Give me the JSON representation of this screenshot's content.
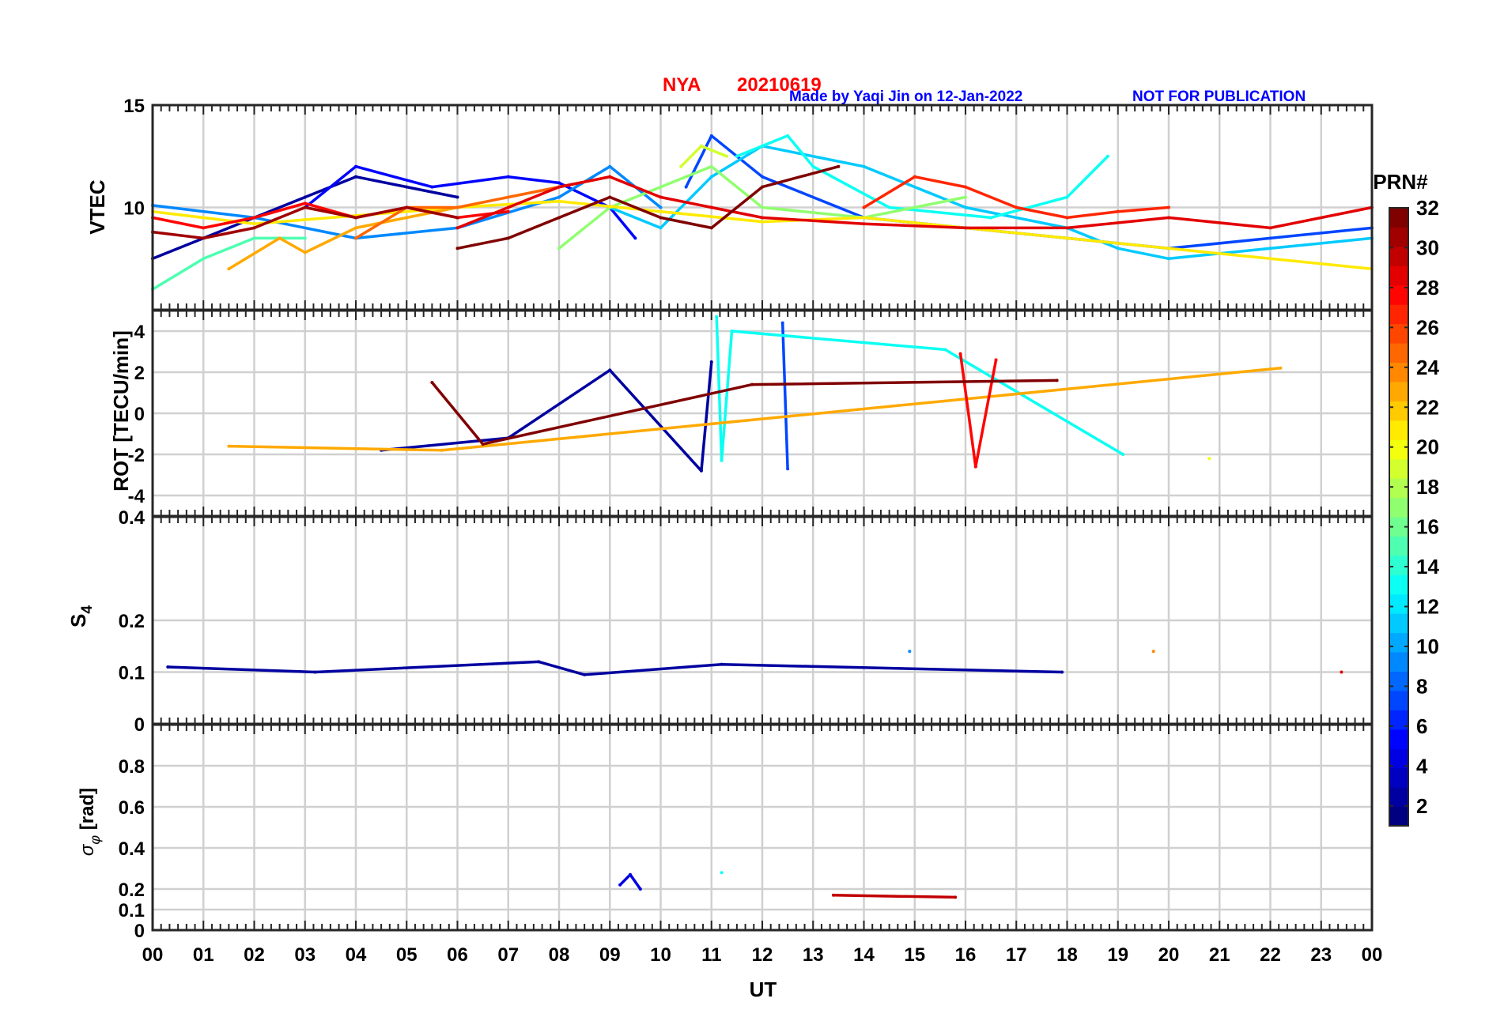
{
  "header": {
    "station": "NYA",
    "date": "20210619",
    "credit": "Made by Yaqi Jin on 12-Jan-2022",
    "notice": "NOT FOR PUBLICATION",
    "title_color": "#ff0000",
    "credit_color": "#0000ff"
  },
  "colorbar": {
    "label": "PRN#",
    "range": [
      1,
      32
    ],
    "ticks": [
      "2",
      "4",
      "6",
      "8",
      "10",
      "12",
      "14",
      "16",
      "18",
      "20",
      "22",
      "24",
      "26",
      "28",
      "30",
      "32"
    ],
    "colormap": "jet"
  },
  "chart_data": [
    {
      "type": "line",
      "ylabel": "VTEC",
      "xlim": [
        0,
        24
      ],
      "ylim": [
        5,
        15
      ],
      "yticks": [
        "10",
        "15"
      ],
      "grid": true,
      "series": [
        {
          "prn": 2,
          "x": [
            0.0,
            1.0,
            2.0,
            3.0,
            4.0,
            5.0,
            6.0
          ],
          "values": [
            7.5,
            8.5,
            9.5,
            10.5,
            11.5,
            11.0,
            10.5
          ]
        },
        {
          "prn": 5,
          "x": [
            3.0,
            4.0,
            5.5,
            7.0,
            8.0,
            9.0,
            9.5
          ],
          "values": [
            10.0,
            12.0,
            11.0,
            11.5,
            11.2,
            10.0,
            8.5
          ]
        },
        {
          "prn": 7,
          "x": [
            10.5,
            11.0,
            12.0,
            14.0,
            16.0,
            18.0,
            20.0,
            22.0,
            24.0
          ],
          "values": [
            11.0,
            13.5,
            11.5,
            9.5,
            9.0,
            8.5,
            8.0,
            8.5,
            9.0
          ]
        },
        {
          "prn": 9,
          "x": [
            0.0,
            2.0,
            4.0,
            6.0,
            8.0,
            9.0,
            10.0
          ],
          "values": [
            10.1,
            9.5,
            8.5,
            9.0,
            10.5,
            12.0,
            10.0
          ]
        },
        {
          "prn": 11,
          "x": [
            9.0,
            10.0,
            11.0,
            12.0,
            14.0,
            16.0,
            18.0,
            19.0,
            20.0,
            22.0,
            24.0
          ],
          "values": [
            10.0,
            9.0,
            11.5,
            13.0,
            12.0,
            10.0,
            9.0,
            8.0,
            7.5,
            8.0,
            8.5
          ]
        },
        {
          "prn": 13,
          "x": [
            11.5,
            12.5,
            13.0,
            14.5,
            16.5,
            18.0,
            18.8
          ],
          "values": [
            12.5,
            13.5,
            12.0,
            10.0,
            9.5,
            10.5,
            12.5
          ]
        },
        {
          "prn": 15,
          "x": [
            0.0,
            1.0,
            2.0,
            3.0
          ],
          "values": [
            6.0,
            7.5,
            8.5,
            8.5
          ]
        },
        {
          "prn": 17,
          "x": [
            8.0,
            9.0,
            10.0,
            11.0,
            12.0,
            14.0,
            16.0
          ],
          "values": [
            8.0,
            10.0,
            11.0,
            12.0,
            10.0,
            9.5,
            10.5
          ]
        },
        {
          "prn": 19,
          "x": [
            10.4,
            10.8,
            11.3
          ],
          "values": [
            12.0,
            13.0,
            12.5
          ]
        },
        {
          "prn": 21,
          "x": [
            0.0,
            2.0,
            4.0,
            6.0,
            8.0,
            10.0,
            12.0,
            14.0,
            16.0,
            18.0,
            20.0,
            22.0,
            24.0
          ],
          "values": [
            9.8,
            9.2,
            9.6,
            10.0,
            10.3,
            9.8,
            9.3,
            9.5,
            9.0,
            8.5,
            8.0,
            7.5,
            7.0
          ]
        },
        {
          "prn": 23,
          "x": [
            1.5,
            2.5,
            3.0,
            4.0,
            5.0,
            6.0
          ],
          "values": [
            7.0,
            8.5,
            7.8,
            9.0,
            9.5,
            10.0
          ]
        },
        {
          "prn": 25,
          "x": [
            4.0,
            5.0,
            6.0,
            7.0,
            8.0,
            9.0
          ],
          "values": [
            8.5,
            10.0,
            10.0,
            10.5,
            11.0,
            11.5
          ]
        },
        {
          "prn": 27,
          "x": [
            14.0,
            15.0,
            16.0,
            17.0,
            18.0,
            19.0,
            20.0
          ],
          "values": [
            10.0,
            11.5,
            11.0,
            10.0,
            9.5,
            9.8,
            10.0
          ]
        },
        {
          "prn": 28,
          "x": [
            0.0,
            1.0,
            2.0,
            3.0,
            4.0,
            5.0,
            6.0,
            7.0
          ],
          "values": [
            9.5,
            9.0,
            9.5,
            10.2,
            9.5,
            10.0,
            9.5,
            9.8
          ]
        },
        {
          "prn": 29,
          "x": [
            6.0,
            7.0,
            8.0,
            9.0,
            10.0,
            11.0,
            12.0,
            14.0,
            16.0,
            18.0,
            20.0,
            22.0,
            24.0
          ],
          "values": [
            9.0,
            10.0,
            11.0,
            11.5,
            10.5,
            10.0,
            9.5,
            9.2,
            9.0,
            9.0,
            9.5,
            9.0,
            10.0
          ]
        },
        {
          "prn": 31,
          "x": [
            0.0,
            1.0,
            2.0,
            3.0,
            4.0,
            5.0,
            6.0
          ],
          "values": [
            8.8,
            8.5,
            9.0,
            10.0,
            9.5,
            10.0,
            9.5
          ]
        },
        {
          "prn": 32,
          "x": [
            6.0,
            7.0,
            8.0,
            9.0,
            10.0,
            11.0,
            12.0,
            13.5
          ],
          "values": [
            8.0,
            8.5,
            9.5,
            10.5,
            9.5,
            9.0,
            11.0,
            12.0
          ]
        }
      ]
    },
    {
      "type": "line",
      "ylabel": "ROT [TECU/min]",
      "xlim": [
        0,
        24
      ],
      "ylim": [
        -5,
        5
      ],
      "yticks": [
        "-4",
        "-2",
        "0",
        "2",
        "4"
      ],
      "grid": true,
      "series": [
        {
          "prn": 2,
          "x": [
            4.5,
            7.0,
            9.0,
            10.8,
            11.0
          ],
          "values": [
            -1.8,
            -1.2,
            2.1,
            -2.8,
            2.5
          ]
        },
        {
          "prn": 7,
          "x": [
            12.4,
            12.5
          ],
          "values": [
            4.4,
            -2.7
          ]
        },
        {
          "prn": 13,
          "x": [
            11.1,
            11.2,
            11.4,
            15.6,
            19.1
          ],
          "values": [
            4.7,
            -2.3,
            4.0,
            3.1,
            -2.0
          ]
        },
        {
          "prn": 20,
          "x": [
            20.8
          ],
          "values": [
            -2.2
          ]
        },
        {
          "prn": 23,
          "x": [
            1.5,
            5.7,
            22.2
          ],
          "values": [
            -1.6,
            -1.8,
            2.2
          ]
        },
        {
          "prn": 28,
          "x": [
            15.9,
            16.2,
            16.6
          ],
          "values": [
            2.9,
            -2.6,
            2.6
          ]
        },
        {
          "prn": 32,
          "x": [
            5.5,
            6.5,
            11.8,
            17.8
          ],
          "values": [
            1.5,
            -1.5,
            1.4,
            1.6
          ]
        }
      ]
    },
    {
      "type": "line",
      "ylabel": "S_4",
      "ylabel_main": "S",
      "ylabel_sub": "4",
      "xlim": [
        0,
        24
      ],
      "ylim": [
        0,
        0.4
      ],
      "yticks": [
        "0",
        "0.1",
        "0.2",
        "0.4"
      ],
      "grid": true,
      "series": [
        {
          "prn": 2,
          "x": [
            0.3,
            3.2,
            7.6,
            8.5,
            11.2,
            17.9
          ],
          "values": [
            0.11,
            0.1,
            0.12,
            0.095,
            0.115,
            0.1
          ]
        },
        {
          "prn": 9,
          "x": [
            14.9
          ],
          "values": [
            0.14
          ]
        },
        {
          "prn": 24,
          "x": [
            19.7
          ],
          "values": [
            0.14
          ]
        },
        {
          "prn": 29,
          "x": [
            23.4
          ],
          "values": [
            0.1
          ]
        }
      ]
    },
    {
      "type": "line",
      "ylabel": "σ_φ [rad]",
      "ylabel_main": "σ",
      "ylabel_sub": "φ",
      "ylabel_rest": " [rad]",
      "xlabel": "UT",
      "xlim": [
        0,
        24
      ],
      "ylim": [
        0,
        1
      ],
      "yticks": [
        "0",
        "0.1",
        "0.2",
        "0.4",
        "0.6",
        "0.8"
      ],
      "xticks": [
        "00",
        "01",
        "02",
        "03",
        "04",
        "05",
        "06",
        "07",
        "08",
        "09",
        "10",
        "11",
        "12",
        "13",
        "14",
        "15",
        "16",
        "17",
        "18",
        "19",
        "20",
        "21",
        "22",
        "23",
        "00"
      ],
      "grid": true,
      "series": [
        {
          "prn": 4,
          "x": [
            9.2,
            9.4,
            9.6
          ],
          "values": [
            0.22,
            0.27,
            0.2
          ]
        },
        {
          "prn": 13,
          "x": [
            11.2
          ],
          "values": [
            0.28
          ]
        },
        {
          "prn": 30,
          "x": [
            13.4,
            15.8
          ],
          "values": [
            0.17,
            0.16
          ]
        }
      ]
    }
  ]
}
